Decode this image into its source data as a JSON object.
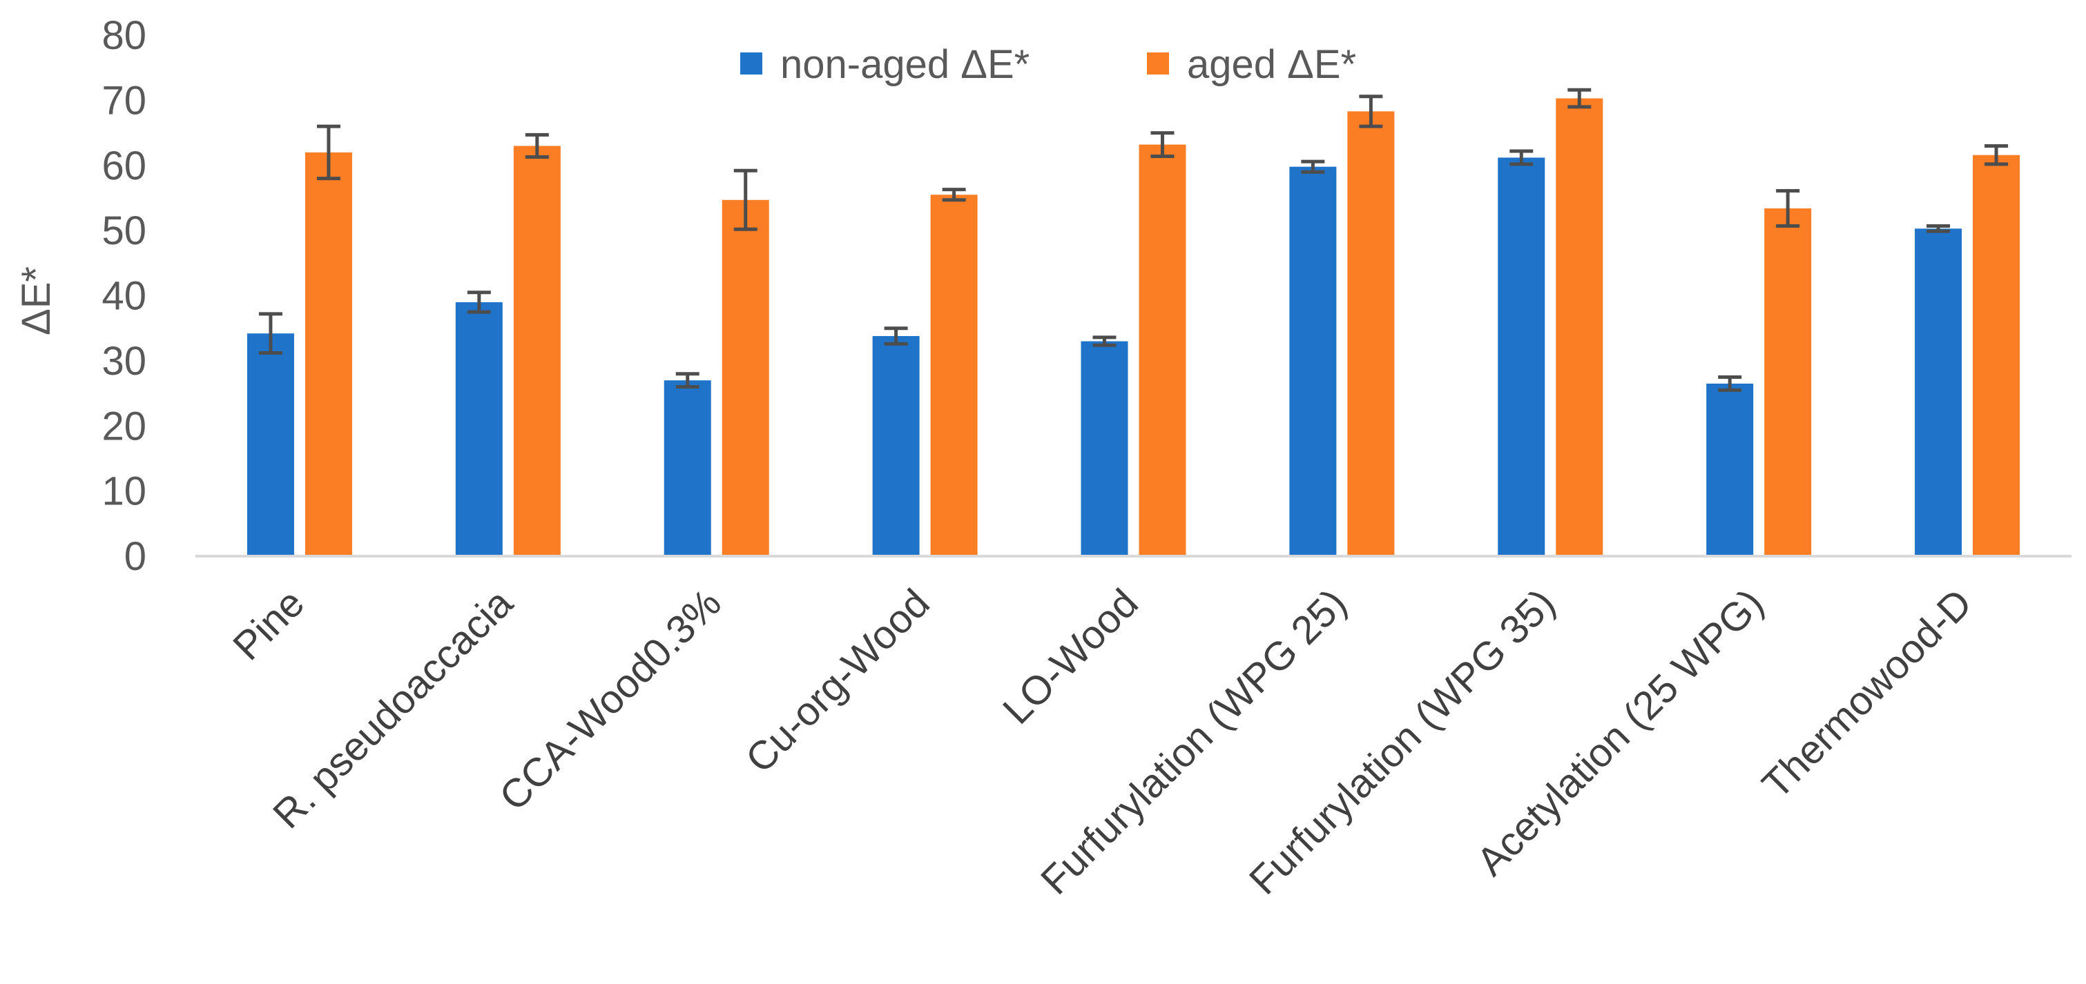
{
  "chart_data": {
    "type": "bar",
    "title": "",
    "xlabel": "",
    "ylabel": "ΔE*",
    "ylim": [
      0,
      80
    ],
    "yticks": [
      0,
      10,
      20,
      30,
      40,
      50,
      60,
      70,
      80
    ],
    "grid": false,
    "legend_position": "top",
    "categories": [
      "Pine",
      "R. pseudoaccacia",
      "CCA-Wood0.3%",
      "Cu-org-Wood",
      "LO-Wood",
      "Furfurylation (WPG 25)",
      "Furfurylation (WPG 35)",
      "Acetylation (25 WPG)",
      "Thermowood-D"
    ],
    "series": [
      {
        "name": "non-aged ΔE*",
        "color": "#1f74c9",
        "values": [
          34.2,
          39.0,
          27.0,
          33.8,
          33.0,
          59.8,
          61.2,
          26.5,
          50.3
        ],
        "errors": [
          3.0,
          1.5,
          1.0,
          1.2,
          0.6,
          0.8,
          1.0,
          1.0,
          0.4
        ]
      },
      {
        "name": "aged ΔE*",
        "color": "#fb7d24",
        "values": [
          62.0,
          63.0,
          54.7,
          55.5,
          63.2,
          68.3,
          70.3,
          53.4,
          61.6
        ],
        "errors": [
          4.0,
          1.7,
          4.5,
          0.8,
          1.8,
          2.3,
          1.3,
          2.7,
          1.4
        ]
      }
    ],
    "error_bar_color": "#4d4d4d",
    "axis_color": "#d9d9d9"
  }
}
